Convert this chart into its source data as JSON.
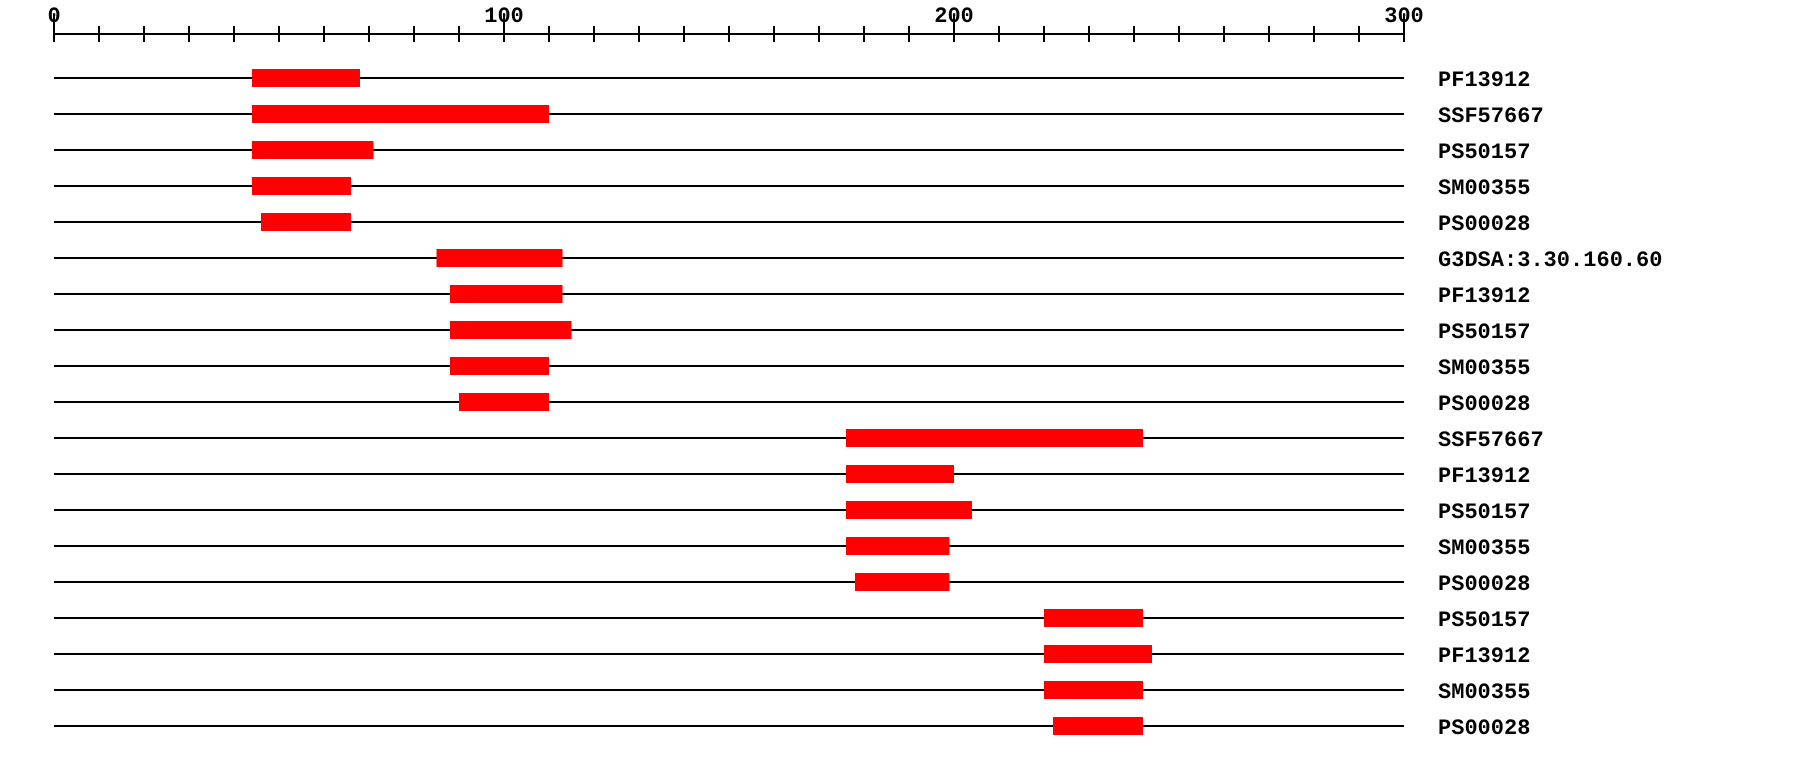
{
  "chart_data": {
    "type": "bar",
    "orientation": "horizontal",
    "categories": [
      "PF13912",
      "SSF57667",
      "PS50157",
      "SM00355",
      "PS00028",
      "G3DSA:3.30.160.60",
      "PF13912",
      "PS50157",
      "SM00355",
      "PS00028",
      "SSF57667",
      "PF13912",
      "PS50157",
      "SM00355",
      "PS00028",
      "PS50157",
      "PF13912",
      "SM00355",
      "PS00028"
    ],
    "base": [
      44,
      44,
      44,
      44,
      46,
      85,
      88,
      88,
      88,
      90,
      176,
      176,
      176,
      176,
      178,
      220,
      220,
      220,
      222
    ],
    "values": [
      24,
      66,
      27,
      22,
      20,
      28,
      25,
      27,
      22,
      20,
      66,
      24,
      28,
      23,
      21,
      22,
      24,
      22,
      20
    ],
    "color": "#ff0000",
    "xlim": [
      0,
      300
    ],
    "xticks": [
      0,
      {
        "value": 10,
        "label": null
      },
      {
        "value": 20,
        "label": null
      },
      {
        "value": 30,
        "label": null
      },
      {
        "value": 40,
        "label": null
      },
      {
        "value": 50,
        "label": null
      },
      {
        "value": 60,
        "label": null
      },
      {
        "value": 70,
        "label": null
      },
      {
        "value": 80,
        "label": null
      },
      {
        "value": 90,
        "label": null
      },
      100,
      {
        "value": 110,
        "label": null
      },
      {
        "value": 120,
        "label": null
      },
      {
        "value": 130,
        "label": null
      },
      {
        "value": 140,
        "label": null
      },
      {
        "value": 150,
        "label": null
      },
      {
        "value": 160,
        "label": null
      },
      {
        "value": 170,
        "label": null
      },
      {
        "value": 180,
        "label": null
      },
      {
        "value": 190,
        "label": null
      },
      200,
      {
        "value": 210,
        "label": null
      },
      {
        "value": 220,
        "label": null
      },
      {
        "value": 230,
        "label": null
      },
      {
        "value": 240,
        "label": null
      },
      {
        "value": 250,
        "label": null
      },
      {
        "value": 260,
        "label": null
      },
      {
        "value": 270,
        "label": null
      },
      {
        "value": 280,
        "label": null
      },
      {
        "value": 290,
        "label": null
      },
      300
    ],
    "grid": "y"
  }
}
